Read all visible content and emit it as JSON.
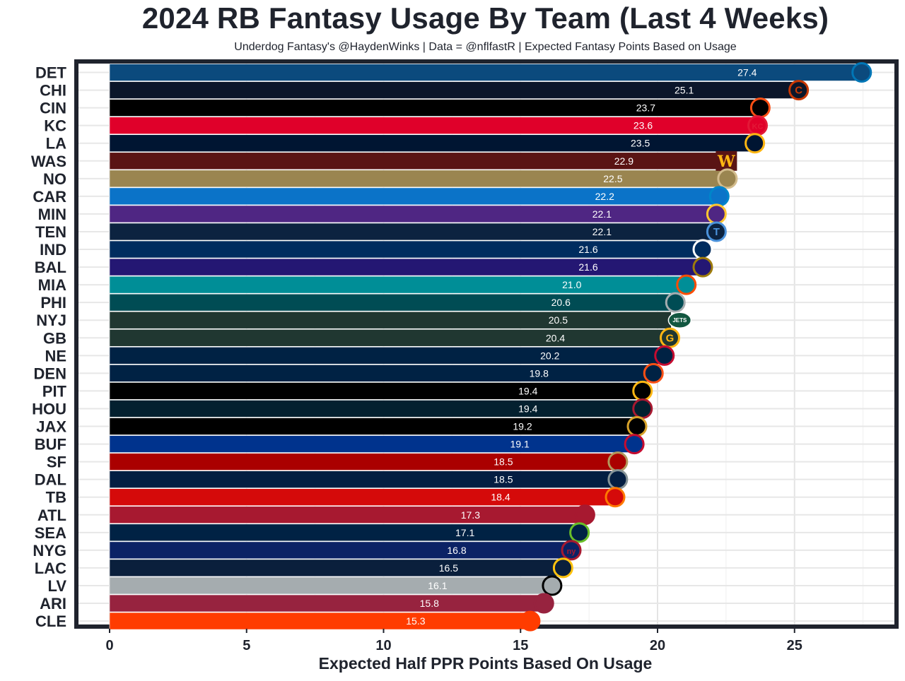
{
  "title": "2024 RB Fantasy Usage By Team (Last 4 Weeks)",
  "subtitle": "Underdog Fantasy's @HaydenWinks | Data = @nflfastR | Expected Fantasy Points Based on Usage",
  "chart_data": {
    "type": "bar",
    "orientation": "horizontal",
    "title": "2024 RB Fantasy Usage By Team (Last 4 Weeks)",
    "subtitle": "Underdog Fantasy's @HaydenWinks | Data = @nflfastR | Expected Fantasy Points Based on Usage",
    "xlabel": "Expected Half PPR Points Based On Usage",
    "ylabel": "",
    "xlim": [
      0,
      28
    ],
    "xticks": [
      0,
      5,
      10,
      15,
      20,
      25
    ],
    "grid": true,
    "legend": "none",
    "categories": [
      "DET",
      "CHI",
      "CIN",
      "KC",
      "LA",
      "WAS",
      "NO",
      "CAR",
      "MIN",
      "TEN",
      "IND",
      "BAL",
      "MIA",
      "PHI",
      "NYJ",
      "GB",
      "NE",
      "DEN",
      "PIT",
      "HOU",
      "JAX",
      "BUF",
      "SF",
      "DAL",
      "TB",
      "ATL",
      "SEA",
      "NYG",
      "LAC",
      "LV",
      "ARI",
      "CLE"
    ],
    "values": [
      27.4,
      25.1,
      23.7,
      23.6,
      23.5,
      22.9,
      22.5,
      22.2,
      22.1,
      22.1,
      21.6,
      21.6,
      21.0,
      20.6,
      20.5,
      20.4,
      20.2,
      19.8,
      19.4,
      19.4,
      19.2,
      19.1,
      18.5,
      18.5,
      18.4,
      17.3,
      17.1,
      16.8,
      16.5,
      16.1,
      15.8,
      15.3
    ],
    "value_labels": [
      "27.4",
      "25.1",
      "23.7",
      "23.6",
      "23.5",
      "22.9",
      "22.5",
      "22.2",
      "22.1",
      "22.1",
      "21.6",
      "21.6",
      "21.0",
      "20.6",
      "20.5",
      "20.4",
      "20.2",
      "19.8",
      "19.4",
      "19.4",
      "19.2",
      "19.1",
      "18.5",
      "18.5",
      "18.4",
      "17.3",
      "17.1",
      "16.8",
      "16.5",
      "16.1",
      "15.8",
      "15.3"
    ],
    "colors": [
      "#0b4a7d",
      "#0b162a",
      "#000000",
      "#e0002a",
      "#001532",
      "#5a1414",
      "#9a8550",
      "#0b73c8",
      "#4f2683",
      "#0c2340",
      "#002c5f",
      "#241773",
      "#008e97",
      "#004c54",
      "#203731",
      "#203731",
      "#002244",
      "#002244",
      "#000000",
      "#03202f",
      "#000000",
      "#00338d",
      "#aa0000",
      "#041e42",
      "#d50a0a",
      "#a71930",
      "#002244",
      "#0b2265",
      "#0a1f3c",
      "#a5acaf",
      "#97233f",
      "#ff3c00"
    ],
    "logo_accents": [
      "#0076b6",
      "#c83803",
      "#fb4f14",
      "#e31837",
      "#ffb612",
      "#ffb612",
      "#d3bc8d",
      "#0085ca",
      "#ffc62f",
      "#4b92db",
      "#ffffff",
      "#9e7c0c",
      "#fc4c02",
      "#a5acaf",
      "#ffffff",
      "#ffb612",
      "#c60c30",
      "#fb4f14",
      "#ffb612",
      "#a71930",
      "#d7a22a",
      "#c60c30",
      "#b3995d",
      "#869397",
      "#ff7900",
      "#a71930",
      "#69be28",
      "#a71930",
      "#ffc20e",
      "#000000",
      "#97233f",
      "#ff3c00"
    ],
    "logo_icons": [
      "lions-logo-icon",
      "bears-logo-icon",
      "bengals-logo-icon",
      "chiefs-logo-icon",
      "rams-logo-icon",
      "commanders-logo-icon",
      "saints-logo-icon",
      "panthers-logo-icon",
      "vikings-logo-icon",
      "titans-logo-icon",
      "colts-logo-icon",
      "ravens-logo-icon",
      "dolphins-logo-icon",
      "eagles-logo-icon",
      "jets-logo-icon",
      "packers-logo-icon",
      "patriots-logo-icon",
      "broncos-logo-icon",
      "steelers-logo-icon",
      "texans-logo-icon",
      "jaguars-logo-icon",
      "bills-logo-icon",
      "49ers-logo-icon",
      "cowboys-logo-icon",
      "buccaneers-logo-icon",
      "falcons-logo-icon",
      "seahawks-logo-icon",
      "giants-logo-icon",
      "chargers-logo-icon",
      "raiders-logo-icon",
      "cardinals-logo-icon",
      "browns-logo-icon"
    ],
    "logo_text": {
      "CHI": "C",
      "KC": "KC",
      "WAS": "W",
      "TEN": "T",
      "NYJ": "JETS",
      "GB": "G",
      "NYG": "ny"
    }
  }
}
